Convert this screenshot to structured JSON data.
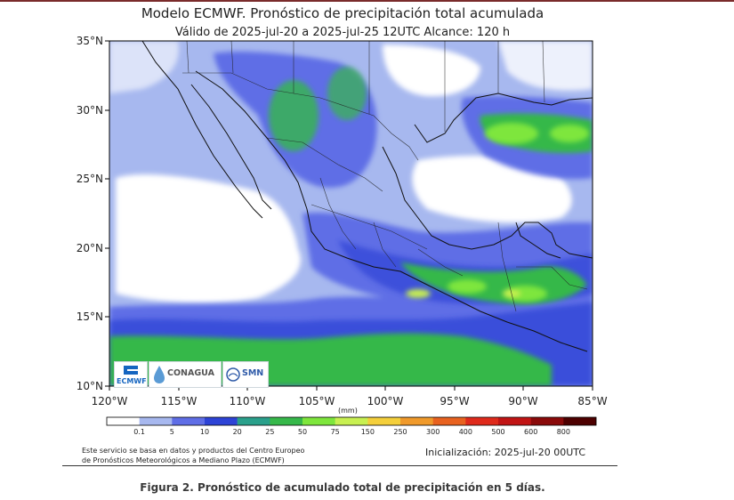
{
  "title": "Modelo ECMWF. Pronóstico de precipitación total acumulada",
  "subtitle": "Válido de 2025-jul-20 a 2025-jul-25 12UTC   Alcance: 120 h",
  "map": {
    "lat_labels": [
      "35°N",
      "30°N",
      "25°N",
      "20°N",
      "15°N",
      "10°N"
    ],
    "lon_labels": [
      "120°W",
      "115°W",
      "110°W",
      "105°W",
      "100°W",
      "95°W",
      "90°W",
      "85°W"
    ],
    "logos": {
      "ecmwf": "ECMWF",
      "conagua": "CONAGUA",
      "smn": "SMN"
    }
  },
  "colorbar": {
    "unit": "(mm)",
    "labels": [
      "0.1",
      "5",
      "10",
      "20",
      "25",
      "50",
      "75",
      "150",
      "250",
      "300",
      "400",
      "500",
      "600",
      "800"
    ],
    "colors": [
      "#ffffff",
      "#a7b8ef",
      "#5f6ee6",
      "#2d43d6",
      "#2aa08b",
      "#36b84a",
      "#7ee63c",
      "#c8f051",
      "#f4cf3b",
      "#f09a2b",
      "#e8621f",
      "#df2a1b",
      "#c11414",
      "#8a0a0a",
      "#4d0000"
    ]
  },
  "footer": {
    "credit_line1": "Este servicio se basa en datos y productos del Centro Europeo",
    "credit_line2": "de Pronósticos Meteorológicos a Mediano Plazo (ECMWF)",
    "init": "Inicialización: 2025-jul-20 00UTC"
  },
  "caption": "Figura 2. Pronóstico de acumulado total de precipitación en 5 días."
}
